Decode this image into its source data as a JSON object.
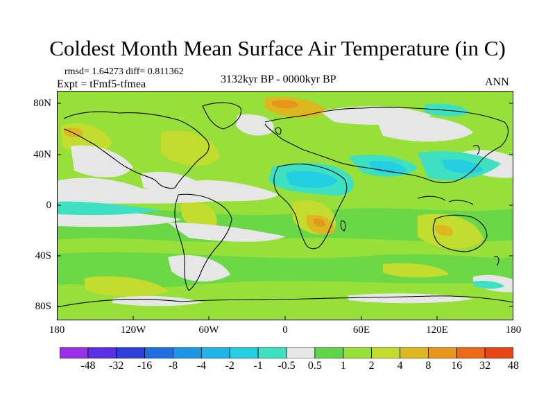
{
  "header": {
    "title": "Coldest Month Mean Surface Air Temperature (in C)",
    "stats": "rmsd= 1.64273  diff= 0.811362",
    "experiment": "Expt = tFmf5-tfmea",
    "period": "3132kyr BP - 0000kyr BP",
    "season": "ANN"
  },
  "map": {
    "lat_labels": [
      "80N",
      "40N",
      "0",
      "40S",
      "80S"
    ],
    "lon_labels": [
      "180",
      "120W",
      "60W",
      "0",
      "60E",
      "120E",
      "180"
    ]
  },
  "colorbar": {
    "labels": [
      "-48",
      "-32",
      "-16",
      "-8",
      "-4",
      "-2",
      "-1",
      "-0.5",
      "0.5",
      "1",
      "2",
      "4",
      "8",
      "16",
      "32",
      "48"
    ],
    "colors": [
      "#9b2fe8",
      "#5a2ee6",
      "#2d3fd8",
      "#1f6ee0",
      "#1e94e6",
      "#1eb4e8",
      "#23cfe0",
      "#3ee0c2",
      "#e6e6e6",
      "#5fd64a",
      "#97e03a",
      "#c4dc2e",
      "#dcb81e",
      "#e6961c",
      "#ea6a1a",
      "#e84416"
    ]
  }
}
